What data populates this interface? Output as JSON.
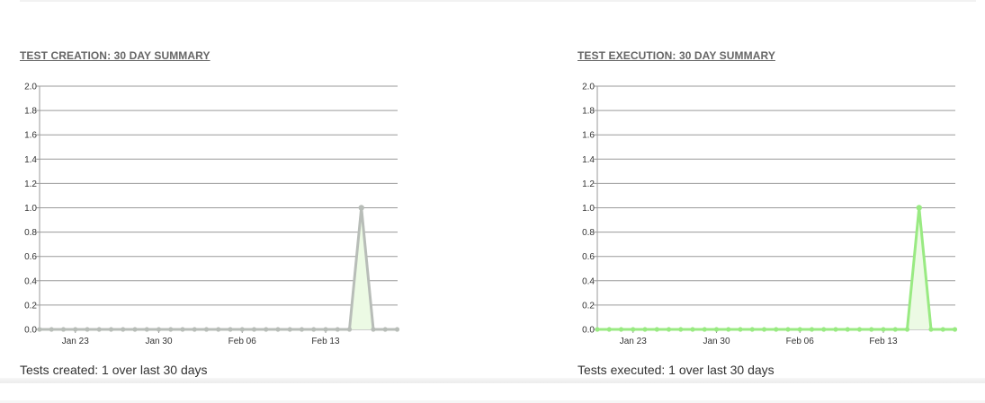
{
  "panels": [
    {
      "title": "TEST CREATION: 30 DAY SUMMARY",
      "summary_text": "Tests created: 1 over last 30 days",
      "line_color": "#b8bdb8",
      "fill_color": "#ecfae4"
    },
    {
      "title": "TEST EXECUTION: 30 DAY SUMMARY",
      "summary_text": "Tests executed: 1 over last 30 days",
      "line_color": "#99ea82",
      "fill_color": "#ecfae4"
    }
  ],
  "chart_data": [
    {
      "type": "area",
      "title": "TEST CREATION: 30 DAY SUMMARY",
      "xlabel": "",
      "ylabel": "",
      "ylim": [
        0,
        2
      ],
      "yticks": [
        "0.0",
        "0.2",
        "0.4",
        "0.6",
        "0.8",
        "1.0",
        "1.2",
        "1.4",
        "1.6",
        "1.8",
        "2.0"
      ],
      "xticks": [
        "Jan 23",
        "Jan 30",
        "Feb 06",
        "Feb 13"
      ],
      "x": [
        "Jan 20",
        "Jan 21",
        "Jan 22",
        "Jan 23",
        "Jan 24",
        "Jan 25",
        "Jan 26",
        "Jan 27",
        "Jan 28",
        "Jan 29",
        "Jan 30",
        "Jan 31",
        "Feb 01",
        "Feb 02",
        "Feb 03",
        "Feb 04",
        "Feb 05",
        "Feb 06",
        "Feb 07",
        "Feb 08",
        "Feb 09",
        "Feb 10",
        "Feb 11",
        "Feb 12",
        "Feb 13",
        "Feb 14",
        "Feb 15",
        "Feb 16",
        "Feb 17",
        "Feb 18",
        "Feb 19"
      ],
      "values": [
        0,
        0,
        0,
        0,
        0,
        0,
        0,
        0,
        0,
        0,
        0,
        0,
        0,
        0,
        0,
        0,
        0,
        0,
        0,
        0,
        0,
        0,
        0,
        0,
        0,
        0,
        0,
        1,
        0,
        0,
        0
      ],
      "grid": true
    },
    {
      "type": "area",
      "title": "TEST EXECUTION: 30 DAY SUMMARY",
      "xlabel": "",
      "ylabel": "",
      "ylim": [
        0,
        2
      ],
      "yticks": [
        "0.0",
        "0.2",
        "0.4",
        "0.6",
        "0.8",
        "1.0",
        "1.2",
        "1.4",
        "1.6",
        "1.8",
        "2.0"
      ],
      "xticks": [
        "Jan 23",
        "Jan 30",
        "Feb 06",
        "Feb 13"
      ],
      "x": [
        "Jan 20",
        "Jan 21",
        "Jan 22",
        "Jan 23",
        "Jan 24",
        "Jan 25",
        "Jan 26",
        "Jan 27",
        "Jan 28",
        "Jan 29",
        "Jan 30",
        "Jan 31",
        "Feb 01",
        "Feb 02",
        "Feb 03",
        "Feb 04",
        "Feb 05",
        "Feb 06",
        "Feb 07",
        "Feb 08",
        "Feb 09",
        "Feb 10",
        "Feb 11",
        "Feb 12",
        "Feb 13",
        "Feb 14",
        "Feb 15",
        "Feb 16",
        "Feb 17",
        "Feb 18",
        "Feb 19"
      ],
      "values": [
        0,
        0,
        0,
        0,
        0,
        0,
        0,
        0,
        0,
        0,
        0,
        0,
        0,
        0,
        0,
        0,
        0,
        0,
        0,
        0,
        0,
        0,
        0,
        0,
        0,
        0,
        0,
        1,
        0,
        0,
        0
      ],
      "grid": true
    }
  ]
}
